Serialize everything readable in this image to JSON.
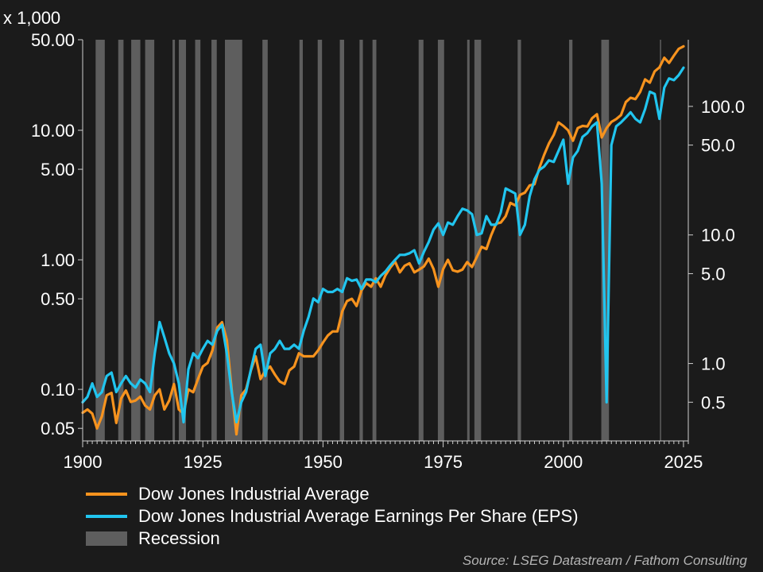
{
  "chart_data": {
    "type": "line",
    "title": "",
    "left_axis": {
      "scale": "log",
      "unit_label": "x 1,000",
      "range": [
        0.04,
        50
      ],
      "ticks": [
        0.05,
        0.1,
        0.5,
        1,
        5,
        10,
        50
      ],
      "tick_labels": [
        "0.05",
        "0.10",
        "0.50",
        "1.00",
        "5.00",
        "10.00",
        "50.00"
      ]
    },
    "right_axis": {
      "scale": "log",
      "range": [
        0.25,
        330
      ],
      "ticks": [
        0.5,
        1,
        5,
        10,
        50,
        100
      ],
      "tick_labels": [
        "0.5",
        "1.0",
        "5.0",
        "10.0",
        "50.0",
        "100.0"
      ]
    },
    "x_axis": {
      "range": [
        1900,
        2026
      ],
      "ticks": [
        1900,
        1925,
        1950,
        1975,
        2000,
        2025
      ],
      "tick_labels": [
        "1900",
        "1925",
        "1950",
        "1975",
        "2000",
        "2025"
      ]
    },
    "grid": false,
    "legend_position": "bottom",
    "series": [
      {
        "name": "Dow Jones Industrial Average",
        "axis": "left",
        "color": "#f7931e",
        "points": [
          [
            1900,
            0.066
          ],
          [
            1901,
            0.07
          ],
          [
            1902,
            0.065
          ],
          [
            1903,
            0.05
          ],
          [
            1904,
            0.062
          ],
          [
            1905,
            0.09
          ],
          [
            1906,
            0.094
          ],
          [
            1907,
            0.055
          ],
          [
            1908,
            0.085
          ],
          [
            1909,
            0.098
          ],
          [
            1910,
            0.08
          ],
          [
            1911,
            0.082
          ],
          [
            1912,
            0.088
          ],
          [
            1913,
            0.075
          ],
          [
            1914,
            0.07
          ],
          [
            1915,
            0.09
          ],
          [
            1916,
            0.1
          ],
          [
            1917,
            0.07
          ],
          [
            1918,
            0.082
          ],
          [
            1919,
            0.11
          ],
          [
            1920,
            0.07
          ],
          [
            1921,
            0.065
          ],
          [
            1922,
            0.1
          ],
          [
            1923,
            0.095
          ],
          [
            1924,
            0.12
          ],
          [
            1925,
            0.15
          ],
          [
            1926,
            0.16
          ],
          [
            1927,
            0.2
          ],
          [
            1928,
            0.3
          ],
          [
            1929,
            0.33
          ],
          [
            1930,
            0.24
          ],
          [
            1931,
            0.1
          ],
          [
            1932,
            0.045
          ],
          [
            1933,
            0.09
          ],
          [
            1934,
            0.1
          ],
          [
            1935,
            0.14
          ],
          [
            1936,
            0.18
          ],
          [
            1937,
            0.12
          ],
          [
            1938,
            0.14
          ],
          [
            1939,
            0.15
          ],
          [
            1940,
            0.13
          ],
          [
            1941,
            0.115
          ],
          [
            1942,
            0.11
          ],
          [
            1943,
            0.14
          ],
          [
            1944,
            0.15
          ],
          [
            1945,
            0.19
          ],
          [
            1946,
            0.18
          ],
          [
            1947,
            0.18
          ],
          [
            1948,
            0.18
          ],
          [
            1949,
            0.2
          ],
          [
            1950,
            0.23
          ],
          [
            1951,
            0.26
          ],
          [
            1952,
            0.28
          ],
          [
            1953,
            0.28
          ],
          [
            1954,
            0.4
          ],
          [
            1955,
            0.48
          ],
          [
            1956,
            0.5
          ],
          [
            1957,
            0.44
          ],
          [
            1958,
            0.58
          ],
          [
            1959,
            0.66
          ],
          [
            1960,
            0.62
          ],
          [
            1961,
            0.72
          ],
          [
            1962,
            0.62
          ],
          [
            1963,
            0.76
          ],
          [
            1964,
            0.87
          ],
          [
            1965,
            0.97
          ],
          [
            1966,
            0.8
          ],
          [
            1967,
            0.9
          ],
          [
            1968,
            0.94
          ],
          [
            1969,
            0.8
          ],
          [
            1970,
            0.84
          ],
          [
            1971,
            0.89
          ],
          [
            1972,
            1.02
          ],
          [
            1973,
            0.85
          ],
          [
            1974,
            0.62
          ],
          [
            1975,
            0.85
          ],
          [
            1976,
            1.0
          ],
          [
            1977,
            0.83
          ],
          [
            1978,
            0.81
          ],
          [
            1979,
            0.84
          ],
          [
            1980,
            0.96
          ],
          [
            1981,
            0.88
          ],
          [
            1982,
            1.05
          ],
          [
            1983,
            1.26
          ],
          [
            1984,
            1.21
          ],
          [
            1985,
            1.55
          ],
          [
            1986,
            1.9
          ],
          [
            1987,
            1.94
          ],
          [
            1988,
            2.17
          ],
          [
            1989,
            2.75
          ],
          [
            1990,
            2.63
          ],
          [
            1991,
            3.17
          ],
          [
            1992,
            3.3
          ],
          [
            1993,
            3.75
          ],
          [
            1994,
            3.83
          ],
          [
            1995,
            5.1
          ],
          [
            1996,
            6.45
          ],
          [
            1997,
            7.9
          ],
          [
            1998,
            9.2
          ],
          [
            1999,
            11.5
          ],
          [
            2000,
            10.8
          ],
          [
            2001,
            10.0
          ],
          [
            2002,
            8.3
          ],
          [
            2003,
            10.4
          ],
          [
            2004,
            10.8
          ],
          [
            2005,
            10.7
          ],
          [
            2006,
            12.4
          ],
          [
            2007,
            13.3
          ],
          [
            2008,
            8.8
          ],
          [
            2009,
            10.4
          ],
          [
            2010,
            11.6
          ],
          [
            2011,
            12.2
          ],
          [
            2012,
            13.1
          ],
          [
            2013,
            16.5
          ],
          [
            2014,
            17.8
          ],
          [
            2015,
            17.4
          ],
          [
            2016,
            19.8
          ],
          [
            2017,
            24.7
          ],
          [
            2018,
            23.3
          ],
          [
            2019,
            28.5
          ],
          [
            2020,
            30.6
          ],
          [
            2021,
            36.3
          ],
          [
            2022,
            33.1
          ],
          [
            2023,
            37.7
          ],
          [
            2024,
            42.5
          ],
          [
            2025,
            44.5
          ]
        ]
      },
      {
        "name": "Dow Jones Industrial Average Earnings Per Share (EPS)",
        "axis": "right",
        "color": "#21c5ef",
        "points": [
          [
            1900,
            0.5
          ],
          [
            1901,
            0.55
          ],
          [
            1902,
            0.7
          ],
          [
            1903,
            0.55
          ],
          [
            1904,
            0.6
          ],
          [
            1905,
            0.8
          ],
          [
            1906,
            0.85
          ],
          [
            1907,
            0.6
          ],
          [
            1908,
            0.7
          ],
          [
            1909,
            0.8
          ],
          [
            1910,
            0.7
          ],
          [
            1911,
            0.65
          ],
          [
            1912,
            0.75
          ],
          [
            1913,
            0.7
          ],
          [
            1914,
            0.6
          ],
          [
            1915,
            1.2
          ],
          [
            1916,
            2.1
          ],
          [
            1917,
            1.6
          ],
          [
            1918,
            1.2
          ],
          [
            1919,
            1.0
          ],
          [
            1920,
            0.7
          ],
          [
            1921,
            0.35
          ],
          [
            1922,
            0.9
          ],
          [
            1923,
            1.2
          ],
          [
            1924,
            1.1
          ],
          [
            1925,
            1.3
          ],
          [
            1926,
            1.5
          ],
          [
            1927,
            1.4
          ],
          [
            1928,
            1.8
          ],
          [
            1929,
            2.0
          ],
          [
            1930,
            1.2
          ],
          [
            1931,
            0.6
          ],
          [
            1932,
            0.35
          ],
          [
            1933,
            0.5
          ],
          [
            1934,
            0.6
          ],
          [
            1935,
            0.9
          ],
          [
            1936,
            1.3
          ],
          [
            1937,
            1.4
          ],
          [
            1938,
            0.8
          ],
          [
            1939,
            1.2
          ],
          [
            1940,
            1.3
          ],
          [
            1941,
            1.5
          ],
          [
            1942,
            1.3
          ],
          [
            1943,
            1.3
          ],
          [
            1944,
            1.4
          ],
          [
            1945,
            1.3
          ],
          [
            1946,
            1.8
          ],
          [
            1947,
            2.3
          ],
          [
            1948,
            3.2
          ],
          [
            1949,
            3.0
          ],
          [
            1950,
            3.8
          ],
          [
            1951,
            3.6
          ],
          [
            1952,
            3.6
          ],
          [
            1953,
            3.8
          ],
          [
            1954,
            3.6
          ],
          [
            1955,
            4.6
          ],
          [
            1956,
            4.4
          ],
          [
            1957,
            4.5
          ],
          [
            1958,
            3.8
          ],
          [
            1959,
            4.5
          ],
          [
            1960,
            4.5
          ],
          [
            1961,
            4.3
          ],
          [
            1962,
            4.8
          ],
          [
            1963,
            5.2
          ],
          [
            1964,
            5.8
          ],
          [
            1965,
            6.4
          ],
          [
            1966,
            7.0
          ],
          [
            1967,
            7.0
          ],
          [
            1968,
            7.2
          ],
          [
            1969,
            7.6
          ],
          [
            1970,
            6.0
          ],
          [
            1971,
            7.4
          ],
          [
            1972,
            8.8
          ],
          [
            1973,
            11.0
          ],
          [
            1974,
            12.3
          ],
          [
            1975,
            10.0
          ],
          [
            1976,
            12.5
          ],
          [
            1977,
            12.0
          ],
          [
            1978,
            14.0
          ],
          [
            1979,
            16.0
          ],
          [
            1980,
            15.5
          ],
          [
            1981,
            14.5
          ],
          [
            1982,
            10.0
          ],
          [
            1983,
            10.3
          ],
          [
            1984,
            14.0
          ],
          [
            1985,
            12.0
          ],
          [
            1986,
            12.0
          ],
          [
            1987,
            15.0
          ],
          [
            1988,
            23.0
          ],
          [
            1989,
            22.0
          ],
          [
            1990,
            21.0
          ],
          [
            1991,
            10.0
          ],
          [
            1992,
            12.0
          ],
          [
            1993,
            20.0
          ],
          [
            1994,
            27.0
          ],
          [
            1995,
            32.0
          ],
          [
            1996,
            34.0
          ],
          [
            1997,
            38.0
          ],
          [
            1998,
            37.0
          ],
          [
            1999,
            45.0
          ],
          [
            2000,
            55.0
          ],
          [
            2001,
            25.0
          ],
          [
            2002,
            40.0
          ],
          [
            2003,
            45.0
          ],
          [
            2004,
            58.0
          ],
          [
            2005,
            62.0
          ],
          [
            2006,
            70.0
          ],
          [
            2007,
            75.0
          ],
          [
            2008,
            25.0
          ],
          [
            2009,
            0.5
          ],
          [
            2010,
            50.0
          ],
          [
            2011,
            70.0
          ],
          [
            2012,
            75.0
          ],
          [
            2013,
            82.0
          ],
          [
            2014,
            90.0
          ],
          [
            2015,
            80.0
          ],
          [
            2016,
            75.0
          ],
          [
            2017,
            95.0
          ],
          [
            2018,
            130.0
          ],
          [
            2019,
            125.0
          ],
          [
            2020,
            80.0
          ],
          [
            2021,
            140.0
          ],
          [
            2022,
            165.0
          ],
          [
            2023,
            160.0
          ],
          [
            2024,
            175.0
          ],
          [
            2025,
            200.0
          ]
        ]
      }
    ],
    "recessions": [
      [
        1902.7,
        1904.6
      ],
      [
        1907.4,
        1908.5
      ],
      [
        1910.1,
        1912.0
      ],
      [
        1913.0,
        1914.9
      ],
      [
        1918.7,
        1919.2
      ],
      [
        1920.0,
        1921.5
      ],
      [
        1923.4,
        1924.5
      ],
      [
        1926.8,
        1927.9
      ],
      [
        1929.6,
        1933.2
      ],
      [
        1937.4,
        1938.5
      ],
      [
        1945.1,
        1945.8
      ],
      [
        1948.9,
        1949.8
      ],
      [
        1953.5,
        1954.4
      ],
      [
        1957.6,
        1958.3
      ],
      [
        1960.3,
        1961.1
      ],
      [
        1969.9,
        1970.9
      ],
      [
        1973.9,
        1975.2
      ],
      [
        1980.0,
        1980.5
      ],
      [
        1981.5,
        1982.9
      ],
      [
        1990.5,
        1991.2
      ],
      [
        2001.2,
        2001.9
      ],
      [
        2007.9,
        2009.5
      ],
      [
        2020.1,
        2020.3
      ]
    ],
    "recession_color": "#5e5e5e",
    "legend_entries": [
      "Dow Jones Industrial Average",
      "Dow Jones Industrial Average Earnings Per Share (EPS)",
      "Recession"
    ]
  },
  "source_text": "Source: LSEG Datastream / Fathom Consulting"
}
